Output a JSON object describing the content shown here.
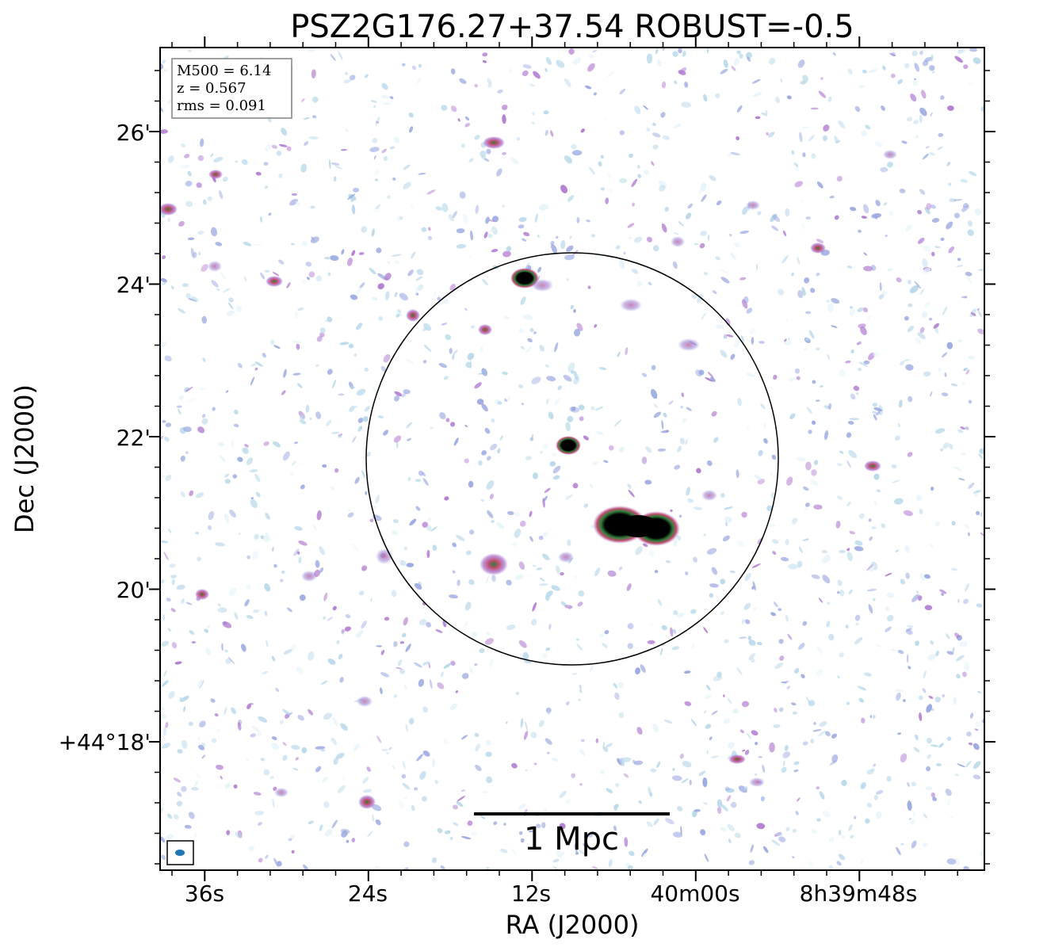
{
  "chart_data": {
    "type": "heatmap",
    "title": "PSZ2G176.27+37.54 ROBUST=-0.5",
    "xlabel": "RA (J2000)",
    "ylabel": "Dec (J2000)",
    "x_ticks": [
      "36s",
      "24s",
      "12s",
      "40m00s",
      "8h39m48s"
    ],
    "y_ticks": [
      "26'",
      "24'",
      "22'",
      "20'",
      "+44°18'"
    ],
    "info_box": {
      "m500": "M500 = 6.14",
      "z": "z = 0.567",
      "rms": "rms = 0.091"
    },
    "scale_bar_label": "1 Mpc",
    "colormap": [
      "#e6f4fa",
      "#b8d8ea",
      "#9aa8e0",
      "#b07ad0",
      "#c24d6e",
      "#2e7d3a",
      "#000000"
    ],
    "bright_sources": [
      {
        "name": "central-pair-west",
        "intensity": 1.0
      },
      {
        "name": "central-pair-east",
        "intensity": 1.0
      },
      {
        "name": "north-source",
        "intensity": 0.9
      },
      {
        "name": "center-source",
        "intensity": 0.85
      }
    ]
  }
}
